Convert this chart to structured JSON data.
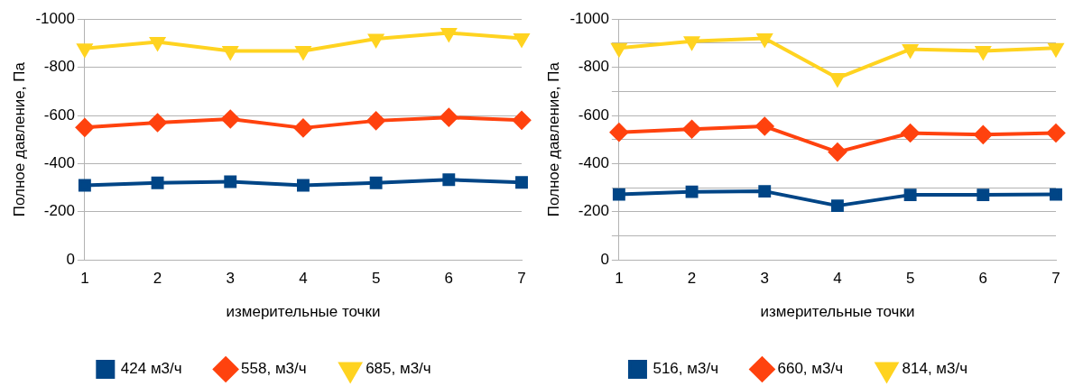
{
  "chart_data": [
    {
      "type": "line",
      "xlabel": "измерительные точки",
      "ylabel": "Полное давление, Па",
      "categories": [
        "1",
        "2",
        "3",
        "4",
        "5",
        "6",
        "7"
      ],
      "ylim": [
        0,
        -1000
      ],
      "yticks": [
        0,
        -200,
        -400,
        -600,
        -800,
        -1000
      ],
      "grid": "y",
      "legend": "bottom",
      "series": [
        {
          "name": "424 м3/ч",
          "color": "#004586",
          "marker": "square",
          "values": [
            -310,
            -320,
            -325,
            -310,
            -320,
            -333,
            -322
          ]
        },
        {
          "name": "558, м3/ч",
          "color": "#ff420e",
          "marker": "diamond",
          "values": [
            -550,
            -570,
            -585,
            -548,
            -578,
            -592,
            -580
          ]
        },
        {
          "name": "685, м3/ч",
          "color": "#ffd320",
          "marker": "triangle",
          "values": [
            -878,
            -905,
            -868,
            -868,
            -918,
            -943,
            -920
          ]
        }
      ]
    },
    {
      "type": "line",
      "xlabel": "измерительные точки",
      "ylabel": "Полное давление, Па",
      "categories": [
        "1",
        "2",
        "3",
        "4",
        "5",
        "6",
        "7"
      ],
      "ylim": [
        0,
        -1000
      ],
      "yticks": [
        0,
        {
          "value": -100,
          "label": null
        },
        -200,
        {
          "value": -300,
          "label": null
        },
        -400,
        {
          "value": -500,
          "label": null
        },
        -600,
        {
          "value": -700,
          "label": null
        },
        -800,
        {
          "value": -900,
          "label": null
        },
        -1000
      ],
      "grid": "y",
      "legend": "bottom",
      "series": [
        {
          "name": "516, м3/ч",
          "color": "#004586",
          "marker": "square",
          "values": [
            -272,
            -283,
            -285,
            -225,
            -270,
            -270,
            -272
          ]
        },
        {
          "name": "660, м3/ч",
          "color": "#ff420e",
          "marker": "diamond",
          "values": [
            -530,
            -543,
            -555,
            -448,
            -527,
            -520,
            -527
          ]
        },
        {
          "name": "814, м3/ч",
          "color": "#ffd320",
          "marker": "triangle",
          "values": [
            -880,
            -908,
            -920,
            -755,
            -875,
            -868,
            -880
          ]
        }
      ]
    }
  ]
}
